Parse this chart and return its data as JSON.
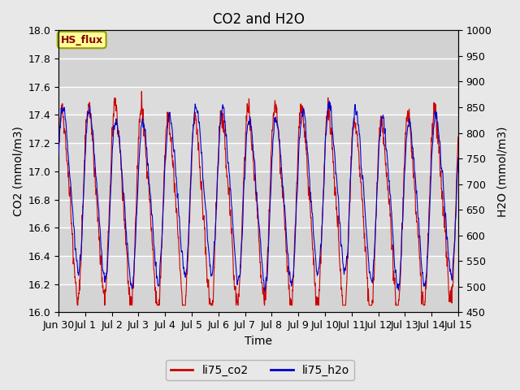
{
  "title": "CO2 and H2O",
  "xlabel": "Time",
  "ylabel_left": "CO2 (mmol/m3)",
  "ylabel_right": "H2O (mmol/m3)",
  "ylim_left": [
    16.0,
    18.0
  ],
  "ylim_right": [
    450,
    1000
  ],
  "yticks_left": [
    16.0,
    16.2,
    16.4,
    16.6,
    16.8,
    17.0,
    17.2,
    17.4,
    17.6,
    17.8,
    18.0
  ],
  "yticks_right": [
    450,
    500,
    550,
    600,
    650,
    700,
    750,
    800,
    850,
    900,
    950,
    1000
  ],
  "xtick_labels": [
    "Jun 30",
    "Jul 1",
    "Jul 2",
    "Jul 3",
    "Jul 4",
    "Jul 5",
    "Jul 6",
    "Jul 7",
    "Jul 8",
    "Jul 9",
    "Jul 10",
    "Jul 11",
    "Jul 12",
    "Jul 13",
    "Jul 14",
    "Jul 15"
  ],
  "color_co2": "#CC0000",
  "color_h2o": "#0000CC",
  "legend_label_co2": "li75_co2",
  "legend_label_h2o": "li75_h2o",
  "box_label": "HS_flux",
  "box_facecolor": "#FFFF99",
  "box_edgecolor": "#999900",
  "bg_color": "#E8E8E8",
  "plot_bg_color": "#DCDCDC",
  "grid_color": "#FFFFFF",
  "title_fontsize": 12,
  "label_fontsize": 10,
  "tick_fontsize": 9,
  "legend_fontsize": 10,
  "n_points": 7200,
  "seed": 42
}
